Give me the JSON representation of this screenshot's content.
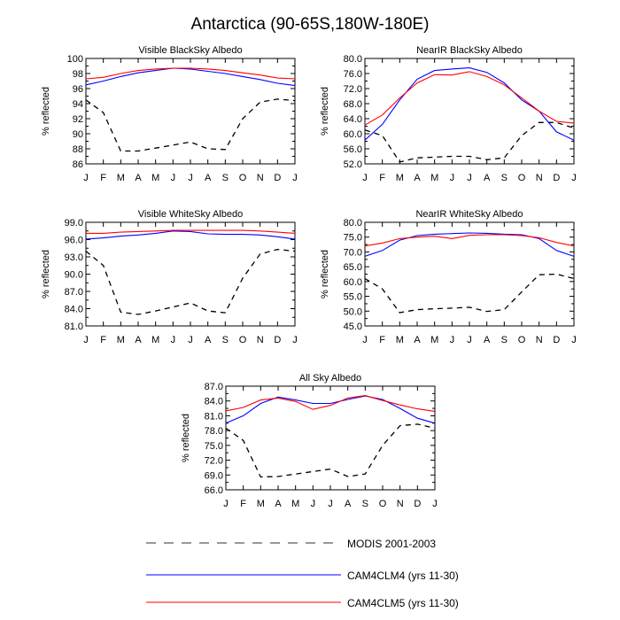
{
  "figure_title": "Antarctica (90-65S,180W-180E)",
  "legend": [
    {
      "label": "MODIS 2001-2003",
      "color": "#000000",
      "dash": true
    },
    {
      "label": "CAM4CLM4 (yrs 11-30)",
      "color": "#0000ff",
      "dash": false
    },
    {
      "label": "CAM4CLM5 (yrs 11-30)",
      "color": "#ff0000",
      "dash": false
    }
  ],
  "chart_data": [
    {
      "type": "line",
      "title": "Visible BlackSky Albedo",
      "ylabel": "% reflected",
      "categories": [
        "J",
        "F",
        "M",
        "A",
        "M",
        "J",
        "J",
        "A",
        "S",
        "O",
        "N",
        "D",
        "J"
      ],
      "ylim": [
        86,
        100
      ],
      "yticks": [
        86,
        88,
        90,
        92,
        94,
        96,
        98,
        100
      ],
      "ytick_labels": [
        "86",
        "88",
        "90",
        "92",
        "94",
        "96",
        "98",
        "100"
      ],
      "series": [
        {
          "name": "MODIS 2001-2003",
          "values": [
            94.5,
            92.8,
            87.7,
            87.7,
            88.1,
            88.5,
            88.9,
            88.0,
            87.9,
            92.0,
            94.2,
            94.6,
            94.4
          ]
        },
        {
          "name": "CAM4CLM4 (yrs 11-30)",
          "values": [
            96.5,
            97.0,
            97.6,
            98.1,
            98.4,
            98.7,
            98.6,
            98.3,
            98.0,
            97.6,
            97.2,
            96.7,
            96.4
          ]
        },
        {
          "name": "CAM4CLM5 (yrs 11-30)",
          "values": [
            97.3,
            97.5,
            98.0,
            98.4,
            98.6,
            98.7,
            98.7,
            98.6,
            98.4,
            98.1,
            97.8,
            97.4,
            97.3
          ]
        }
      ]
    },
    {
      "type": "line",
      "title": "NearIR BlackSky Albedo",
      "ylabel": "% reflected",
      "categories": [
        "J",
        "F",
        "M",
        "A",
        "M",
        "J",
        "J",
        "A",
        "S",
        "O",
        "N",
        "D",
        "J"
      ],
      "ylim": [
        52,
        80
      ],
      "yticks": [
        52,
        56,
        60,
        64,
        68,
        72,
        76,
        80
      ],
      "ytick_labels": [
        "52.0",
        "56.0",
        "60.0",
        "64.0",
        "68.0",
        "72.0",
        "76.0",
        "80.0"
      ],
      "series": [
        {
          "name": "MODIS 2001-2003",
          "values": [
            61.0,
            59.5,
            52.5,
            53.6,
            53.8,
            54.0,
            54.0,
            53.1,
            53.6,
            59.5,
            63.0,
            63.0,
            61.5
          ]
        },
        {
          "name": "CAM4CLM4 (yrs 11-30)",
          "values": [
            58.3,
            62.5,
            69.0,
            74.5,
            76.8,
            77.2,
            77.5,
            76.3,
            73.5,
            69.0,
            66.0,
            60.5,
            58.3
          ]
        },
        {
          "name": "CAM4CLM5 (yrs 11-30)",
          "values": [
            62.3,
            65.0,
            69.5,
            73.5,
            75.7,
            75.6,
            76.5,
            75.2,
            73.0,
            69.5,
            66.0,
            63.3,
            62.8
          ]
        }
      ]
    },
    {
      "type": "line",
      "title": "Visible WhiteSky Albedo",
      "ylabel": "% reflected",
      "categories": [
        "J",
        "F",
        "M",
        "A",
        "M",
        "J",
        "J",
        "A",
        "S",
        "O",
        "N",
        "D",
        "J"
      ],
      "ylim": [
        81,
        99
      ],
      "yticks": [
        81,
        84,
        87,
        90,
        93,
        96,
        99
      ],
      "ytick_labels": [
        "81.0",
        "84.0",
        "87.0",
        "90.0",
        "93.0",
        "96.0",
        "99.0"
      ],
      "series": [
        {
          "name": "MODIS 2001-2003",
          "values": [
            94.0,
            91.5,
            83.4,
            83.0,
            83.6,
            84.3,
            85.0,
            83.6,
            83.3,
            89.3,
            93.5,
            94.3,
            94.0
          ]
        },
        {
          "name": "CAM4CLM4 (yrs 11-30)",
          "values": [
            96.1,
            96.3,
            96.6,
            96.8,
            97.1,
            97.5,
            97.4,
            97.0,
            96.9,
            96.9,
            96.8,
            96.5,
            96.1
          ]
        },
        {
          "name": "CAM4CLM5 (yrs 11-30)",
          "values": [
            97.1,
            97.1,
            97.3,
            97.4,
            97.5,
            97.6,
            97.6,
            97.6,
            97.6,
            97.6,
            97.5,
            97.3,
            97.1
          ]
        }
      ]
    },
    {
      "type": "line",
      "title": "NearIR WhiteSky Albedo",
      "ylabel": "% reflected",
      "categories": [
        "J",
        "F",
        "M",
        "A",
        "M",
        "J",
        "J",
        "A",
        "S",
        "O",
        "N",
        "D",
        "J"
      ],
      "ylim": [
        45,
        80
      ],
      "yticks": [
        45,
        50,
        55,
        60,
        65,
        70,
        75,
        80
      ],
      "ytick_labels": [
        "45.0",
        "50.0",
        "55.0",
        "60.0",
        "65.0",
        "70.0",
        "75.0",
        "80.0"
      ],
      "series": [
        {
          "name": "MODIS 2001-2003",
          "values": [
            61.0,
            57.5,
            49.5,
            50.5,
            50.8,
            51.0,
            51.3,
            49.9,
            50.5,
            56.5,
            62.3,
            62.5,
            61.0
          ]
        },
        {
          "name": "CAM4CLM4 (yrs 11-30)",
          "values": [
            68.5,
            70.5,
            74.0,
            75.5,
            76.0,
            76.2,
            76.4,
            76.3,
            76.0,
            75.8,
            74.5,
            70.5,
            68.5
          ]
        },
        {
          "name": "CAM4CLM5 (yrs 11-30)",
          "values": [
            72.0,
            73.0,
            74.5,
            75.0,
            75.3,
            74.5,
            75.6,
            75.8,
            75.8,
            75.5,
            74.8,
            73.2,
            72.0
          ]
        }
      ]
    },
    {
      "type": "line",
      "title": "All Sky Albedo",
      "ylabel": "% reflected",
      "categories": [
        "J",
        "F",
        "M",
        "A",
        "M",
        "J",
        "J",
        "A",
        "S",
        "O",
        "N",
        "D",
        "J"
      ],
      "ylim": [
        66,
        87
      ],
      "yticks": [
        66,
        69,
        72,
        75,
        78,
        81,
        84,
        87
      ],
      "ytick_labels": [
        "66.0",
        "69.0",
        "72.0",
        "75.0",
        "78.0",
        "81.0",
        "84.0",
        "87.0"
      ],
      "series": [
        {
          "name": "MODIS 2001-2003",
          "values": [
            78.5,
            76.0,
            68.6,
            68.7,
            69.2,
            69.7,
            70.2,
            68.7,
            69.2,
            75.0,
            79.0,
            79.3,
            78.5
          ]
        },
        {
          "name": "CAM4CLM4 (yrs 11-30)",
          "values": [
            79.5,
            81.0,
            83.5,
            84.8,
            84.2,
            83.5,
            83.5,
            84.3,
            85.0,
            84.3,
            82.5,
            80.5,
            79.5
          ]
        },
        {
          "name": "CAM4CLM5 (yrs 11-30)",
          "values": [
            82.0,
            82.7,
            84.2,
            84.6,
            83.9,
            82.3,
            83.1,
            84.6,
            85.1,
            84.1,
            83.2,
            82.4,
            81.9
          ]
        }
      ]
    }
  ]
}
